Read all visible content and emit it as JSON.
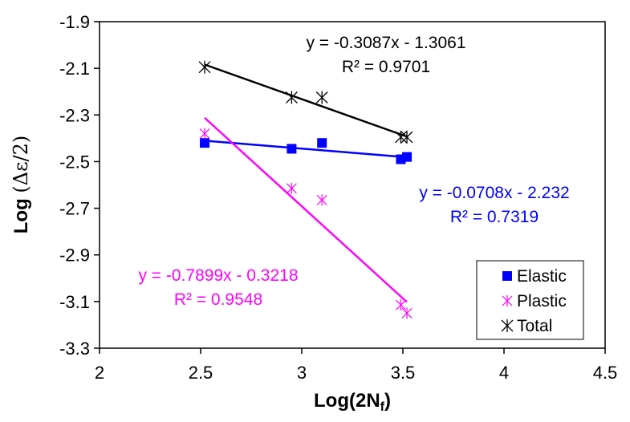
{
  "chart_data": {
    "type": "scatter",
    "xlabel": {
      "main": "Log(2N",
      "sub": "f",
      "close": ")"
    },
    "ylabel": {
      "main": "Log ",
      "expr": "(Δε/2)"
    },
    "xlim": [
      2,
      4.5
    ],
    "ylim": [
      -3.3,
      -1.9
    ],
    "xticks": [
      "2",
      "2.5",
      "3",
      "3.5",
      "4",
      "4.5"
    ],
    "yticks": [
      "-1.9",
      "-2.1",
      "-2.3",
      "-2.5",
      "-2.7",
      "-2.9",
      "-3.1",
      "-3.3"
    ],
    "legend_position": "bottom-right",
    "series": [
      {
        "name": "Elastic",
        "marker": "square",
        "color": "#0000ff",
        "x": [
          2.52,
          2.95,
          3.1,
          3.49,
          3.52
        ],
        "y": [
          -2.42,
          -2.445,
          -2.42,
          -2.49,
          -2.48
        ],
        "trendline": {
          "slope": -0.0708,
          "intercept": -2.232,
          "x": [
            2.52,
            3.52
          ]
        }
      },
      {
        "name": "Plastic",
        "marker": "asterisk",
        "color": "#ff00ff",
        "x": [
          2.52,
          2.95,
          3.1,
          3.49,
          3.52
        ],
        "y": [
          -2.38,
          -2.615,
          -2.665,
          -3.115,
          -3.15
        ],
        "trendline": {
          "slope": -0.7899,
          "intercept": -0.3218,
          "x": [
            2.52,
            3.52
          ]
        }
      },
      {
        "name": "Total",
        "marker": "xstar",
        "color": "#000000",
        "x": [
          2.52,
          2.95,
          3.1,
          3.49,
          3.52
        ],
        "y": [
          -2.095,
          -2.225,
          -2.225,
          -2.395,
          -2.395
        ],
        "trendline": {
          "slope": -0.3087,
          "intercept": -1.3061,
          "x": [
            2.52,
            3.52
          ]
        }
      }
    ],
    "annotations": [
      {
        "series": "Total",
        "equation": "y = -0.3087x - 1.3061",
        "r2": "R² = 0.9701",
        "color": "#000000"
      },
      {
        "series": "Elastic",
        "equation": "y = -0.0708x - 2.232",
        "r2": "R² = 0.7319",
        "color": "#0000ff"
      },
      {
        "series": "Plastic",
        "equation": "y = -0.7899x - 0.3218",
        "r2": "R² = 0.9548",
        "color": "#ff00ff"
      }
    ]
  }
}
